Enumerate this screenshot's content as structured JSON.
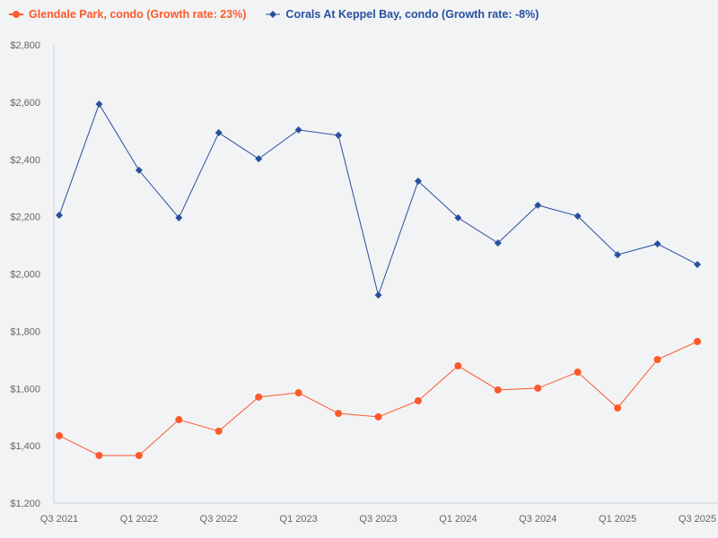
{
  "chart_data": {
    "type": "line",
    "title": "",
    "xlabel": "",
    "ylabel": "",
    "ylim": [
      1200,
      2800
    ],
    "y_ticks": [
      "$1,200",
      "$1,400",
      "$1,600",
      "$1,800",
      "$2,000",
      "$2,200",
      "$2,400",
      "$2,600",
      "$2,800"
    ],
    "y_tick_values": [
      1200,
      1400,
      1600,
      1800,
      2000,
      2200,
      2400,
      2600,
      2800
    ],
    "x": [
      "Q3 2021",
      "Q4 2021",
      "Q1 2022",
      "Q2 2022",
      "Q3 2022",
      "Q4 2022",
      "Q1 2023",
      "Q2 2023",
      "Q3 2023",
      "Q4 2023",
      "Q1 2024",
      "Q2 2024",
      "Q3 2024",
      "Q4 2024",
      "Q1 2025",
      "Q2 2025",
      "Q3 2025"
    ],
    "x_tick_labels": [
      "Q3 2021",
      "",
      "Q1 2022",
      "",
      "Q3 2022",
      "",
      "Q1 2023",
      "",
      "Q3 2023",
      "",
      "Q1 2024",
      "",
      "Q3 2024",
      "",
      "Q1 2025",
      "",
      "Q3 2025"
    ],
    "legend_position": "top-left",
    "grid": false,
    "series": [
      {
        "name": "Glendale Park, condo (Growth rate: 23%)",
        "color": "#fb5a2b",
        "marker": "circle",
        "values": [
          1435,
          1366,
          1366,
          1491,
          1451,
          1570,
          1585,
          1513,
          1501,
          1557,
          1679,
          1595,
          1601,
          1657,
          1532,
          1701,
          1764
        ]
      },
      {
        "name": "Corals At Keppel Bay, condo (Growth rate: -8%)",
        "color": "#27509e",
        "marker": "diamond",
        "values": [
          2205,
          2593,
          2362,
          2196,
          2493,
          2402,
          2503,
          2484,
          1926,
          2324,
          2196,
          2108,
          2240,
          2202,
          2067,
          2105,
          2033
        ]
      }
    ]
  }
}
